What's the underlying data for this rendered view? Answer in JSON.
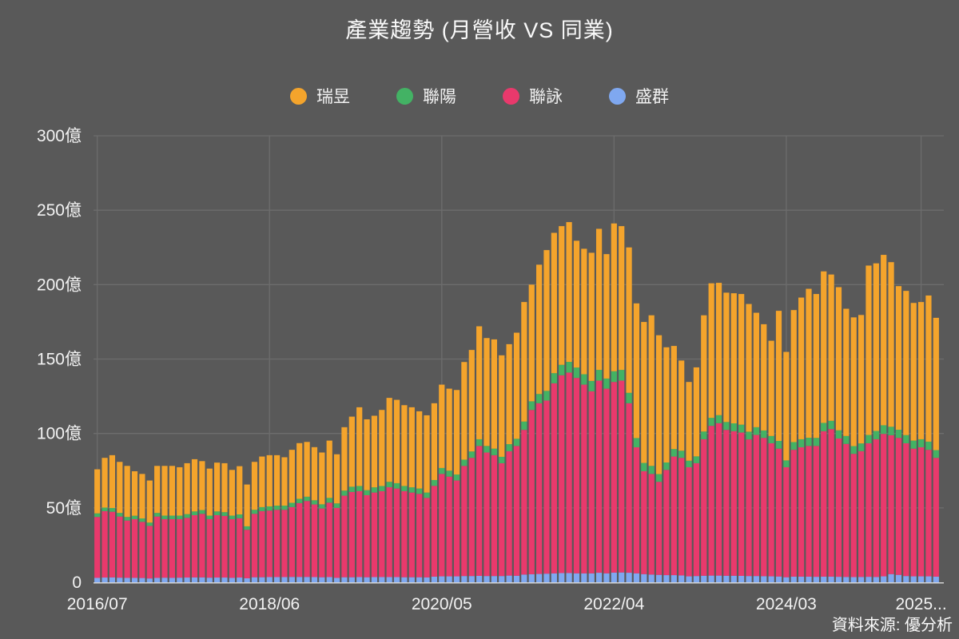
{
  "title": "產業趨勢 (月營收 VS 同業)",
  "source_note": "資料來源: 優分析",
  "colors": {
    "background": "#595959",
    "grid": "#6d6d6d",
    "baseline": "#d4d4d4",
    "text": "#f2f2f2",
    "ruiyu_orange": "#F4A42C",
    "lianyang_green": "#43B264",
    "lianyong_pink": "#E9396C",
    "shengqun_blue": "#7FA8F0"
  },
  "legend": [
    {
      "label": "瑞昱",
      "color": "#F4A42C"
    },
    {
      "label": "聯陽",
      "color": "#43B264"
    },
    {
      "label": "聯詠",
      "color": "#E9396C"
    },
    {
      "label": "盛群",
      "color": "#7FA8F0"
    }
  ],
  "chart_data": {
    "type": "bar",
    "stacked": true,
    "title": "產業趨勢 (月營收 VS 同業)",
    "unit": "億",
    "ylim": [
      0,
      300
    ],
    "grid": true,
    "legend_position": "top-center",
    "y_ticks": [
      {
        "value": 0,
        "label": "0"
      },
      {
        "value": 50,
        "label": "50億"
      },
      {
        "value": 100,
        "label": "100億"
      },
      {
        "value": 150,
        "label": "150億"
      },
      {
        "value": 200,
        "label": "200億"
      },
      {
        "value": 250,
        "label": "250億"
      },
      {
        "value": 300,
        "label": "300億"
      }
    ],
    "x_ticks": [
      {
        "index": 0,
        "label": "2016/07"
      },
      {
        "index": 23,
        "label": "2018/06"
      },
      {
        "index": 46,
        "label": "2020/05"
      },
      {
        "index": 69,
        "label": "2022/04"
      },
      {
        "index": 92,
        "label": "2024/03"
      },
      {
        "index": 110,
        "label": "2025..."
      }
    ],
    "categories": [
      "2016/07",
      "2016/08",
      "2016/09",
      "2016/10",
      "2016/11",
      "2016/12",
      "2017/01",
      "2017/02",
      "2017/03",
      "2017/04",
      "2017/05",
      "2017/06",
      "2017/07",
      "2017/08",
      "2017/09",
      "2017/10",
      "2017/11",
      "2017/12",
      "2018/01",
      "2018/02",
      "2018/03",
      "2018/04",
      "2018/05",
      "2018/06",
      "2018/07",
      "2018/08",
      "2018/09",
      "2018/10",
      "2018/11",
      "2018/12",
      "2019/01",
      "2019/02",
      "2019/03",
      "2019/04",
      "2019/05",
      "2019/06",
      "2019/07",
      "2019/08",
      "2019/09",
      "2019/10",
      "2019/11",
      "2019/12",
      "2020/01",
      "2020/02",
      "2020/03",
      "2020/04",
      "2020/05",
      "2020/06",
      "2020/07",
      "2020/08",
      "2020/09",
      "2020/10",
      "2020/11",
      "2020/12",
      "2021/01",
      "2021/02",
      "2021/03",
      "2021/04",
      "2021/05",
      "2021/06",
      "2021/07",
      "2021/08",
      "2021/09",
      "2021/10",
      "2021/11",
      "2021/12",
      "2022/01",
      "2022/02",
      "2022/03",
      "2022/04",
      "2022/05",
      "2022/06",
      "2022/07",
      "2022/08",
      "2022/09",
      "2022/10",
      "2022/11",
      "2022/12",
      "2023/01",
      "2023/02",
      "2023/03",
      "2023/04",
      "2023/05",
      "2023/06",
      "2023/07",
      "2023/08",
      "2023/09",
      "2023/10",
      "2023/11",
      "2023/12",
      "2024/01",
      "2024/02",
      "2024/03",
      "2024/04",
      "2024/05",
      "2024/06",
      "2024/07",
      "2024/08",
      "2024/09",
      "2024/10",
      "2024/11",
      "2024/12",
      "2025/01",
      "2025/02",
      "2025/03",
      "2025/04",
      "2025/05",
      "2025/06",
      "2025/07",
      "2025/08",
      "2025/09",
      "2025/10",
      "2025/11"
    ],
    "series": [
      {
        "name": "盛群",
        "color": "#7FA8F0",
        "values": [
          3.0,
          3.2,
          3.3,
          3.1,
          3.0,
          3.0,
          2.9,
          2.6,
          3.0,
          3.1,
          3.0,
          3.1,
          3.2,
          3.3,
          3.3,
          3.1,
          3.2,
          3.2,
          3.0,
          3.2,
          2.7,
          3.4,
          3.4,
          3.5,
          3.5,
          3.5,
          3.6,
          3.6,
          3.6,
          3.5,
          3.4,
          3.5,
          3.0,
          3.4,
          3.4,
          3.5,
          3.4,
          3.5,
          3.5,
          3.5,
          3.5,
          3.4,
          3.4,
          3.4,
          3.3,
          3.8,
          4.0,
          4.0,
          4.0,
          4.2,
          4.2,
          4.3,
          4.2,
          4.2,
          4.2,
          4.5,
          4.4,
          5.2,
          5.4,
          5.6,
          5.8,
          6.0,
          6.2,
          6.2,
          6.0,
          6.0,
          6.0,
          6.4,
          6.0,
          6.5,
          6.6,
          6.4,
          6.0,
          5.5,
          5.2,
          5.0,
          4.8,
          4.8,
          4.6,
          4.0,
          4.2,
          4.4,
          4.5,
          4.5,
          4.4,
          4.4,
          4.3,
          4.2,
          4.2,
          4.1,
          4.0,
          3.9,
          3.4,
          3.8,
          3.8,
          3.8,
          3.7,
          3.8,
          3.8,
          3.7,
          3.6,
          3.5,
          3.6,
          3.7,
          3.6,
          4.0,
          5.5,
          5.0,
          4.2,
          4.0,
          4.0,
          4.0,
          3.8
        ]
      },
      {
        "name": "聯詠",
        "color": "#E9396C",
        "values": [
          40.9,
          44.6,
          44.1,
          41.1,
          38.5,
          39.4,
          37.7,
          35.3,
          41.2,
          39.3,
          39.4,
          39.3,
          40.1,
          41.8,
          42.7,
          39.3,
          41.9,
          41.4,
          39.4,
          39.8,
          32.6,
          42.6,
          44.4,
          44.7,
          45.2,
          45.2,
          46.9,
          49.6,
          51.0,
          48.8,
          46.2,
          50.0,
          47.0,
          54.8,
          57.3,
          57.7,
          55.1,
          56.8,
          57.7,
          60.4,
          59.5,
          57.8,
          56.9,
          56.0,
          53.4,
          61.0,
          68.8,
          67.0,
          64.4,
          74.0,
          79.4,
          87.3,
          83.0,
          81.2,
          75.8,
          83.5,
          87.2,
          97.2,
          110.4,
          114.7,
          116.3,
          127.7,
          132.9,
          134.7,
          131.3,
          126.8,
          122.3,
          129.1,
          124.1,
          128.1,
          128.9,
          113.9,
          84.7,
          69.1,
          67.6,
          62.5,
          70.7,
          79.7,
          79.0,
          73.3,
          75.8,
          91.7,
          100.6,
          102.4,
          98.0,
          97.1,
          96.3,
          91.8,
          94.8,
          92.9,
          89.4,
          85.9,
          73.9,
          85.2,
          86.9,
          87.8,
          87.9,
          97.7,
          99.1,
          92.9,
          89.4,
          82.8,
          84.5,
          89.7,
          92.5,
          95.7,
          93.3,
          92.0,
          89.2,
          85.8,
          86.7,
          85.0,
          79.8
        ]
      },
      {
        "name": "聯陽",
        "color": "#43B264",
        "values": [
          2.4,
          2.4,
          2.5,
          2.4,
          2.4,
          2.3,
          2.3,
          2.2,
          2.4,
          2.4,
          2.4,
          2.4,
          2.5,
          2.5,
          2.5,
          2.4,
          2.5,
          2.5,
          2.4,
          2.6,
          2.3,
          2.7,
          2.7,
          2.8,
          2.8,
          2.8,
          2.9,
          2.9,
          2.9,
          2.8,
          2.8,
          3.2,
          3.0,
          3.4,
          3.5,
          3.5,
          3.4,
          3.5,
          3.5,
          3.6,
          3.6,
          3.5,
          3.5,
          3.6,
          3.6,
          3.9,
          4.0,
          4.0,
          4.0,
          4.2,
          4.3,
          4.5,
          4.4,
          4.4,
          4.3,
          4.8,
          4.8,
          5.6,
          5.8,
          6.2,
          6.5,
          6.8,
          7.0,
          7.2,
          7.0,
          7.0,
          7.0,
          7.2,
          6.8,
          7.2,
          7.2,
          7.0,
          6.2,
          5.6,
          5.4,
          5.2,
          5.0,
          5.0,
          4.8,
          4.4,
          4.6,
          5.2,
          5.4,
          5.4,
          5.3,
          5.3,
          5.3,
          5.2,
          5.2,
          5.0,
          4.9,
          5.2,
          4.6,
          5.2,
          5.4,
          5.5,
          5.4,
          5.6,
          5.6,
          5.5,
          5.3,
          5.2,
          5.2,
          5.6,
          5.6,
          5.8,
          5.7,
          5.5,
          5.5,
          5.4,
          5.4,
          5.5,
          5.2
        ]
      },
      {
        "name": "瑞昱",
        "color": "#F4A42C",
        "values": [
          29.6,
          33.4,
          35.5,
          34.3,
          34.3,
          29.9,
          29.9,
          28.3,
          31.6,
          33.4,
          33.4,
          32.5,
          34.2,
          35.1,
          32.9,
          31.6,
          32.8,
          32.9,
          30.7,
          32.4,
          28.1,
          32.2,
          34.0,
          34.4,
          33.9,
          32.5,
          35.6,
          37.4,
          36.8,
          35.7,
          34.8,
          38.5,
          33.0,
          42.6,
          47.1,
          52.9,
          47.6,
          48.1,
          51.1,
          56.4,
          56.0,
          54.3,
          53.8,
          51.9,
          51.9,
          51.6,
          56.0,
          55.1,
          56.8,
          65.6,
          68.2,
          75.9,
          72.5,
          73.4,
          68.2,
          67.2,
          71.3,
          80.3,
          78.4,
          86.9,
          94.6,
          94.3,
          93.2,
          93.9,
          85.2,
          84.3,
          86.1,
          94.8,
          83.6,
          99.3,
          96.6,
          97.7,
          90.5,
          94.7,
          101.2,
          93.3,
          77.4,
          69.3,
          60.6,
          52.9,
          59.8,
          78.1,
          90.4,
          88.9,
          86.9,
          87.4,
          87.8,
          85.8,
          76.9,
          71.4,
          64.0,
          87.4,
          72.9,
          88.7,
          95.2,
          100.1,
          96.7,
          101.8,
          98.3,
          96.2,
          85.5,
          86.5,
          86.3,
          113.8,
          112.6,
          114.5,
          110.6,
          96.5,
          96.9,
          92.5,
          92.2,
          98.2,
          88.9
        ]
      }
    ]
  }
}
